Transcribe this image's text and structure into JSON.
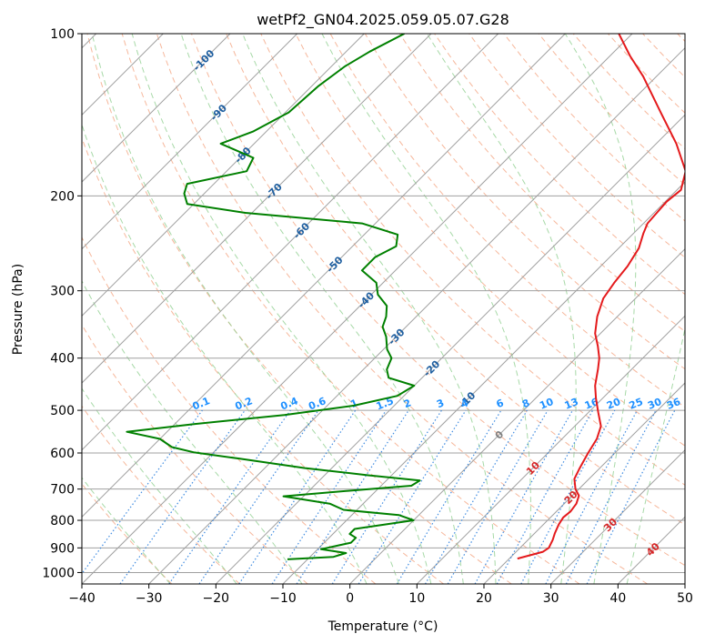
{
  "chart_data": {
    "type": "line",
    "title": "wetPf2_GN04.2025.059.05.07.G28",
    "xlabel": "Temperature (°C)",
    "ylabel": "Pressure (hPa)",
    "xlim": [
      -40,
      50
    ],
    "ylim": [
      1050,
      100
    ],
    "log_y": true,
    "skew_t": true,
    "grid": true,
    "x_ticks": [
      -40,
      -30,
      -20,
      -10,
      0,
      10,
      20,
      30,
      40,
      50
    ],
    "x_tick_labels": [
      "−40",
      "−30",
      "−20",
      "−10",
      "0",
      "10",
      "20",
      "30",
      "40",
      "50"
    ],
    "y_ticks": [
      100,
      200,
      300,
      400,
      500,
      600,
      700,
      800,
      900,
      1000
    ],
    "y_tick_labels": [
      "100",
      "200",
      "300",
      "400",
      "500",
      "600",
      "700",
      "800",
      "900",
      "1000"
    ],
    "series": [
      {
        "color": "#e41a1c",
        "p": [
          942,
          915,
          900,
          870,
          845,
          815,
          790,
          770,
          745,
          720,
          700,
          670,
          640,
          600,
          565,
          535,
          505,
          475,
          450,
          420,
          400,
          380,
          360,
          335,
          310,
          290,
          270,
          250,
          235,
          225,
          215,
          205,
          195,
          180,
          160,
          140,
          120,
          110,
          100
        ],
        "t": [
          21.2,
          24.0,
          24.3,
          23.7,
          23.0,
          22.3,
          21.9,
          22.1,
          21.8,
          21.0,
          19.5,
          17.8,
          17.0,
          16.0,
          15.2,
          13.9,
          11.5,
          9.0,
          7.0,
          5.0,
          3.5,
          1.5,
          -0.8,
          -3.0,
          -4.8,
          -5.5,
          -6.0,
          -7.0,
          -8.5,
          -9.4,
          -9.6,
          -9.8,
          -9.4,
          -11.5,
          -17.0,
          -24.0,
          -32.0,
          -37.0,
          -42.0
        ]
      },
      {
        "color": "#008000",
        "p": [
          945,
          935,
          920,
          905,
          880,
          862,
          848,
          830,
          800,
          782,
          765,
          745,
          722,
          705,
          690,
          675,
          660,
          640,
          615,
          598,
          585,
          565,
          548,
          530,
          510,
          490,
          470,
          450,
          435,
          420,
          400,
          385,
          365,
          350,
          335,
          320,
          305,
          290,
          275,
          260,
          248,
          236,
          225,
          215,
          207,
          198,
          190,
          180,
          170,
          160,
          152,
          140,
          125,
          115,
          108,
          100
        ],
        "t": [
          -13.0,
          -6.5,
          -5.2,
          -9.5,
          -6.0,
          -6.0,
          -7.5,
          -7.5,
          0.0,
          -3.0,
          -12.0,
          -15.0,
          -23.0,
          -14.0,
          -5.5,
          -5.0,
          -13.5,
          -24.0,
          -35.0,
          -43.0,
          -47.0,
          -50.0,
          -56.0,
          -47.0,
          -35.0,
          -26.0,
          -21.0,
          -20.0,
          -25.0,
          -26.5,
          -27.5,
          -29.5,
          -31.5,
          -33.5,
          -34.5,
          -36.0,
          -39.0,
          -41.0,
          -45.0,
          -45.0,
          -43.5,
          -45.0,
          -52.0,
          -71.0,
          -81.0,
          -83.0,
          -84.0,
          -77.0,
          -78.0,
          -85.0,
          -82.0,
          -79.5,
          -79.0,
          -78.0,
          -76.5,
          -74.0
        ]
      }
    ],
    "dry_adiabats_C": [
      -30,
      -20,
      -10,
      0,
      10,
      20,
      30,
      40,
      50,
      60,
      70,
      80,
      90,
      100,
      110,
      120,
      130,
      140,
      150,
      160,
      170,
      180,
      190,
      200
    ],
    "moist_adiabats_C": [
      -30,
      -20,
      -10,
      0,
      5,
      10,
      15,
      20,
      25,
      30,
      35,
      40
    ],
    "mixing_ratio_lines": [
      0.1,
      0.2,
      0.4,
      0.6,
      1,
      1.5,
      2,
      3,
      4,
      6,
      8,
      10,
      13,
      16,
      20,
      25,
      30,
      36
    ],
    "mixing_ratio_labels": [
      "0.1",
      "0.2",
      "0.4",
      "0.6",
      "1",
      "1.5",
      "2",
      "3",
      "4",
      "6",
      "8",
      "10",
      "13",
      "16",
      "20",
      "25",
      "30",
      "36"
    ],
    "isotherm_labels": [
      {
        "value": -100,
        "text": "-100",
        "p": 112,
        "color": "#1f5fa0"
      },
      {
        "value": -90,
        "text": "-90",
        "p": 140,
        "color": "#1f5fa0"
      },
      {
        "value": -80,
        "text": "-80",
        "p": 168,
        "color": "#1f5fa0"
      },
      {
        "value": -70,
        "text": "-70",
        "p": 196,
        "color": "#1f5fa0"
      },
      {
        "value": -60,
        "text": "-60",
        "p": 232,
        "color": "#1f5fa0"
      },
      {
        "value": -50,
        "text": "-50",
        "p": 268,
        "color": "#1f5fa0"
      },
      {
        "value": -40,
        "text": "-40",
        "p": 312,
        "color": "#1f5fa0"
      },
      {
        "value": -30,
        "text": "-30",
        "p": 365,
        "color": "#1f5fa0"
      },
      {
        "value": -20,
        "text": "-20",
        "p": 418,
        "color": "#1f5fa0"
      },
      {
        "value": -10,
        "text": "-10",
        "p": 478,
        "color": "#1f5fa0"
      },
      {
        "value": 0,
        "text": "0",
        "p": 555,
        "color": "#808080"
      },
      {
        "value": 10,
        "text": "10",
        "p": 640,
        "color": "#d62728"
      },
      {
        "value": 20,
        "text": "20",
        "p": 725,
        "color": "#d62728"
      },
      {
        "value": 30,
        "text": "30",
        "p": 815,
        "color": "#d62728"
      },
      {
        "value": 40,
        "text": "40",
        "p": 905,
        "color": "#d62728"
      }
    ],
    "colors": {
      "temperature": "#e41a1c",
      "dewpoint": "#008000",
      "isotherm": "#a0a0a0",
      "isobar": "#a0a0a0",
      "dry_adiabat": "#f4a582",
      "moist_adiabat": "#91cf91",
      "mixing_ratio": "#1e78dc",
      "mixing_ratio_label": "#1e90ff"
    }
  }
}
